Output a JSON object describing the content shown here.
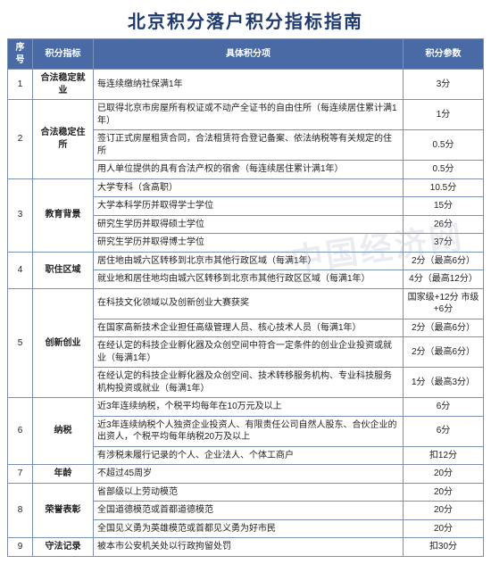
{
  "title": "北京积分落户积分指标指南",
  "watermark": "中国经济网",
  "columns": [
    "序号",
    "积分指标",
    "具体积分项",
    "积分参数"
  ],
  "rows": [
    {
      "seq": "1",
      "cat": "合法稳定就业",
      "rowspan_cat": 1,
      "detail": "每连续缴纳社保满1年",
      "score": "3分"
    },
    {
      "seq": "2",
      "cat": "合法稳定住所",
      "rowspan_cat": 3,
      "detail": "已取得北京市房屋所有权证或不动产全证书的自由住所（每连续居住累计满1年）",
      "score": "1分"
    },
    {
      "detail": "签订正式房屋租赁合同，合法租赁符合登记备案、依法纳税等有关规定的住所",
      "score": "0.5分"
    },
    {
      "detail": "用人单位提供的具有合法产权的宿舍（每连续居住累计满1年）",
      "score": "0.5分"
    },
    {
      "seq": "3",
      "cat": "教育背景",
      "rowspan_cat": 4,
      "detail": "大学专科（含高职）",
      "score": "10.5分"
    },
    {
      "detail": "大学本科学历并取得学士学位",
      "score": "15分"
    },
    {
      "detail": "研究生学历并取得硕士学位",
      "score": "26分"
    },
    {
      "detail": "研究生学历并取得博士学位",
      "score": "37分"
    },
    {
      "seq": "4",
      "cat": "职住区域",
      "rowspan_cat": 2,
      "detail": "居住地由城六区转移到北京市其他行政区域（每满1年）",
      "score": "2分（最高6分）"
    },
    {
      "detail": "就业地和居住地均由城六区转移到北京市其他行政区区域（每满1年）",
      "score": "4分（最高12分）"
    },
    {
      "seq": "5",
      "cat": "创新创业",
      "rowspan_cat": 4,
      "detail": "在科技文化领域以及创新创业大赛获奖",
      "score": "国家级+12分 市级+6分"
    },
    {
      "detail": "在国家高新技术企业担任高级管理人员、核心技术人员（每满1年）",
      "score": "2分（最高6分）"
    },
    {
      "detail": "在经认定的科技企业孵化器及众创空间中符合一定条件的创业企业投资或就业（每满1年）",
      "score": "2分（最高6分）"
    },
    {
      "detail": "在经认定的科技企业孵化器及众创空间、技术转移服务机构、专业科技服务机构投资或就业（每满1年）",
      "score": "1分（最高3分）"
    },
    {
      "seq": "6",
      "cat": "纳税",
      "rowspan_cat": 3,
      "detail": "近3年连续纳税，个税平均每年在10万元及以上",
      "score": "6分"
    },
    {
      "detail": "近3年连续纳税个人独资企业投资人、有限责任公司自然人股东、合伙企业的出资人，个税平均每年纳税20万及以上",
      "score": "6分"
    },
    {
      "detail": "有涉税未履行记录的个人、企业法人、个体工商户",
      "score": "扣12分"
    },
    {
      "seq": "7",
      "cat": "年龄",
      "rowspan_cat": 1,
      "detail": "不超过45周岁",
      "score": "20分"
    },
    {
      "seq": "8",
      "cat": "荣誉表彰",
      "rowspan_cat": 3,
      "detail": "省部级以上劳动模范",
      "score": "20分"
    },
    {
      "detail": "全国道德模范或首都道德模范",
      "score": "20分"
    },
    {
      "detail": "全国见义勇为英雄模范或首都见义勇为好市民",
      "score": "20分"
    },
    {
      "seq": "9",
      "cat": "守法记录",
      "rowspan_cat": 1,
      "detail": "被本市公安机关处以行政拘留处罚",
      "score": "扣30分"
    }
  ]
}
